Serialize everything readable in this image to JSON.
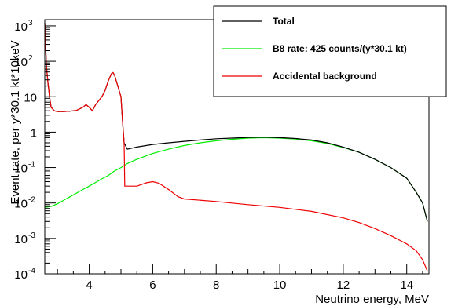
{
  "chart_data": {
    "type": "line",
    "xlabel": "Neutrino energy, MeV",
    "ylabel": "Event rate, per y*30.1 kt*10keV",
    "xlim": [
      2.6,
      14.7
    ],
    "ylim": [
      0.0001,
      1500
    ],
    "y_scale": "log",
    "grid": false,
    "legend_position": "top-right",
    "x_ticks": [
      4,
      6,
      8,
      10,
      12,
      14
    ],
    "y_ticks": [
      {
        "value": 0.0001,
        "base": "10",
        "exp": "-4"
      },
      {
        "value": 0.001,
        "base": "10",
        "exp": "-3"
      },
      {
        "value": 0.01,
        "base": "10",
        "exp": "-2"
      },
      {
        "value": 0.1,
        "base": "10",
        "exp": "-1"
      },
      {
        "value": 1,
        "base": "1",
        "exp": ""
      },
      {
        "value": 10,
        "base": "10",
        "exp": ""
      },
      {
        "value": 100,
        "base": "10",
        "exp": "2"
      },
      {
        "value": 1000,
        "base": "10",
        "exp": "3"
      }
    ],
    "series": [
      {
        "name": "Total",
        "color": "#000000",
        "points": [
          [
            2.6,
            1200
          ],
          [
            2.65,
            80
          ],
          [
            2.7,
            25
          ],
          [
            2.75,
            10
          ],
          [
            2.8,
            5
          ],
          [
            2.9,
            4
          ],
          [
            3.0,
            3.8
          ],
          [
            3.2,
            3.8
          ],
          [
            3.4,
            3.9
          ],
          [
            3.6,
            4.1
          ],
          [
            3.8,
            5
          ],
          [
            3.9,
            6
          ],
          [
            4.0,
            5
          ],
          [
            4.1,
            4
          ],
          [
            4.2,
            6
          ],
          [
            4.4,
            10
          ],
          [
            4.5,
            15
          ],
          [
            4.6,
            28
          ],
          [
            4.7,
            45
          ],
          [
            4.75,
            48
          ],
          [
            4.8,
            40
          ],
          [
            4.9,
            20
          ],
          [
            5.0,
            10
          ],
          [
            5.05,
            2
          ],
          [
            5.1,
            0.5
          ],
          [
            5.2,
            0.33
          ],
          [
            5.5,
            0.38
          ],
          [
            6.0,
            0.45
          ],
          [
            6.5,
            0.5
          ],
          [
            7.0,
            0.55
          ],
          [
            7.5,
            0.6
          ],
          [
            8.0,
            0.65
          ],
          [
            8.5,
            0.68
          ],
          [
            9.0,
            0.71
          ],
          [
            9.5,
            0.72
          ],
          [
            10.0,
            0.7
          ],
          [
            10.5,
            0.66
          ],
          [
            11.0,
            0.6
          ],
          [
            11.5,
            0.5
          ],
          [
            12.0,
            0.38
          ],
          [
            12.5,
            0.27
          ],
          [
            13.0,
            0.17
          ],
          [
            13.5,
            0.1
          ],
          [
            14.0,
            0.05
          ],
          [
            14.3,
            0.02
          ],
          [
            14.5,
            0.01
          ],
          [
            14.65,
            0.003
          ]
        ]
      },
      {
        "name": "B8 rate: 425 counts/(y*30.1 kt)",
        "color": "#00ee00",
        "points": [
          [
            2.6,
            0.0075
          ],
          [
            2.8,
            0.008
          ],
          [
            3.0,
            0.0095
          ],
          [
            3.2,
            0.012
          ],
          [
            3.4,
            0.015
          ],
          [
            3.6,
            0.019
          ],
          [
            3.8,
            0.024
          ],
          [
            4.0,
            0.03
          ],
          [
            4.2,
            0.038
          ],
          [
            4.4,
            0.048
          ],
          [
            4.6,
            0.06
          ],
          [
            4.8,
            0.08
          ],
          [
            5.0,
            0.1
          ],
          [
            5.2,
            0.13
          ],
          [
            5.5,
            0.17
          ],
          [
            6.0,
            0.25
          ],
          [
            6.5,
            0.33
          ],
          [
            7.0,
            0.42
          ],
          [
            7.5,
            0.5
          ],
          [
            8.0,
            0.57
          ],
          [
            8.5,
            0.63
          ],
          [
            9.0,
            0.68
          ],
          [
            9.5,
            0.7
          ],
          [
            10.0,
            0.68
          ],
          [
            10.5,
            0.64
          ],
          [
            11.0,
            0.57
          ],
          [
            11.5,
            0.48
          ],
          [
            12.0,
            0.37
          ],
          [
            12.5,
            0.27
          ],
          [
            13.0,
            0.17
          ],
          [
            13.5,
            0.1
          ],
          [
            14.0,
            0.05
          ],
          [
            14.3,
            0.02
          ],
          [
            14.5,
            0.01
          ],
          [
            14.65,
            0.003
          ]
        ]
      },
      {
        "name": "Accidental background",
        "color": "#ee0000",
        "points": [
          [
            2.6,
            1200
          ],
          [
            2.65,
            80
          ],
          [
            2.7,
            25
          ],
          [
            2.75,
            10
          ],
          [
            2.8,
            5
          ],
          [
            2.9,
            4
          ],
          [
            3.0,
            3.8
          ],
          [
            3.2,
            3.8
          ],
          [
            3.4,
            3.9
          ],
          [
            3.6,
            4.1
          ],
          [
            3.8,
            5
          ],
          [
            3.9,
            6
          ],
          [
            4.0,
            5
          ],
          [
            4.1,
            4
          ],
          [
            4.2,
            6
          ],
          [
            4.4,
            10
          ],
          [
            4.5,
            15
          ],
          [
            4.6,
            28
          ],
          [
            4.7,
            45
          ],
          [
            4.75,
            48
          ],
          [
            4.8,
            40
          ],
          [
            4.9,
            20
          ],
          [
            5.0,
            10
          ],
          [
            5.05,
            2
          ],
          [
            5.1,
            0.5
          ],
          [
            5.12,
            0.03
          ],
          [
            5.3,
            0.03
          ],
          [
            5.5,
            0.03
          ],
          [
            5.8,
            0.037
          ],
          [
            6.0,
            0.04
          ],
          [
            6.2,
            0.036
          ],
          [
            6.5,
            0.024
          ],
          [
            6.8,
            0.015
          ],
          [
            7.0,
            0.013
          ],
          [
            8.0,
            0.011
          ],
          [
            9.0,
            0.009
          ],
          [
            10.0,
            0.0075
          ],
          [
            11.0,
            0.0058
          ],
          [
            12.0,
            0.0038
          ],
          [
            12.5,
            0.0028
          ],
          [
            13.0,
            0.0019
          ],
          [
            13.5,
            0.0012
          ],
          [
            14.0,
            0.0007
          ],
          [
            14.3,
            0.00045
          ],
          [
            14.5,
            0.00025
          ],
          [
            14.65,
            0.00012
          ]
        ]
      }
    ]
  }
}
